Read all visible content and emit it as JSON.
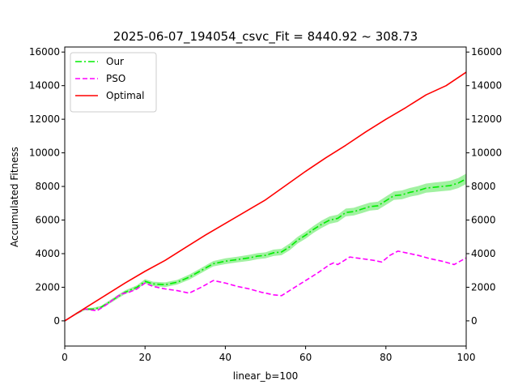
{
  "chart_data": {
    "type": "line",
    "title": "2025-06-07_194054_csvc_Fit = 8440.92 ~ 308.73",
    "xlabel": "linear_b=100",
    "ylabel": "Accumulated Fitness",
    "xlim": [
      0,
      100
    ],
    "ylim": [
      -1500,
      16300
    ],
    "x_ticks": [
      0,
      20,
      40,
      60,
      80,
      100
    ],
    "y_ticks": [
      0,
      2000,
      4000,
      6000,
      8000,
      10000,
      12000,
      14000,
      16000
    ],
    "legend_position": "top-left",
    "grid": false,
    "series": [
      {
        "name": "Our",
        "color": "#00ee00",
        "style": "dashdot",
        "band_color": "#90ee90",
        "points": [
          [
            0,
            0
          ],
          [
            3,
            450
          ],
          [
            5,
            700
          ],
          [
            7,
            700
          ],
          [
            9,
            800
          ],
          [
            12,
            1250
          ],
          [
            15,
            1700
          ],
          [
            18,
            2000
          ],
          [
            20,
            2350
          ],
          [
            22,
            2200
          ],
          [
            25,
            2150
          ],
          [
            28,
            2300
          ],
          [
            31,
            2600
          ],
          [
            34,
            3000
          ],
          [
            37,
            3400
          ],
          [
            40,
            3550
          ],
          [
            43,
            3650
          ],
          [
            46,
            3750
          ],
          [
            48,
            3850
          ],
          [
            50,
            3900
          ],
          [
            52,
            4050
          ],
          [
            54,
            4100
          ],
          [
            56,
            4400
          ],
          [
            58,
            4800
          ],
          [
            60,
            5100
          ],
          [
            62,
            5450
          ],
          [
            64,
            5750
          ],
          [
            66,
            6000
          ],
          [
            68,
            6100
          ],
          [
            70,
            6450
          ],
          [
            72,
            6500
          ],
          [
            74,
            6650
          ],
          [
            76,
            6800
          ],
          [
            78,
            6850
          ],
          [
            80,
            7150
          ],
          [
            82,
            7450
          ],
          [
            84,
            7500
          ],
          [
            86,
            7650
          ],
          [
            88,
            7750
          ],
          [
            90,
            7900
          ],
          [
            92,
            7950
          ],
          [
            94,
            8000
          ],
          [
            96,
            8050
          ],
          [
            98,
            8200
          ],
          [
            100,
            8450
          ]
        ],
        "band_halfwidth": [
          0,
          60,
          70,
          80,
          90,
          100,
          110,
          120,
          130,
          130,
          140,
          140,
          150,
          150,
          160,
          170,
          170,
          180,
          180,
          180,
          190,
          190,
          200,
          200,
          210,
          210,
          220,
          220,
          220,
          230,
          230,
          240,
          240,
          240,
          250,
          250,
          260,
          260,
          270,
          270,
          280,
          280,
          290,
          300,
          310
        ]
      },
      {
        "name": "PSO",
        "color": "#ff00ff",
        "style": "dashed",
        "points": [
          [
            0,
            0
          ],
          [
            3,
            450
          ],
          [
            5,
            700
          ],
          [
            8,
            600
          ],
          [
            10,
            900
          ],
          [
            12,
            1250
          ],
          [
            14,
            1600
          ],
          [
            16,
            1700
          ],
          [
            18,
            1900
          ],
          [
            20,
            2250
          ],
          [
            22,
            2050
          ],
          [
            25,
            1900
          ],
          [
            28,
            1800
          ],
          [
            31,
            1650
          ],
          [
            34,
            2000
          ],
          [
            37,
            2400
          ],
          [
            40,
            2250
          ],
          [
            43,
            2050
          ],
          [
            46,
            1900
          ],
          [
            49,
            1700
          ],
          [
            52,
            1550
          ],
          [
            54,
            1500
          ],
          [
            57,
            1950
          ],
          [
            60,
            2400
          ],
          [
            63,
            2850
          ],
          [
            66,
            3350
          ],
          [
            67,
            3450
          ],
          [
            68,
            3350
          ],
          [
            71,
            3800
          ],
          [
            74,
            3700
          ],
          [
            77,
            3600
          ],
          [
            79,
            3500
          ],
          [
            81,
            3900
          ],
          [
            83,
            4150
          ],
          [
            85,
            4050
          ],
          [
            88,
            3900
          ],
          [
            91,
            3700
          ],
          [
            94,
            3550
          ],
          [
            97,
            3350
          ],
          [
            100,
            3750
          ]
        ]
      },
      {
        "name": "Optimal",
        "color": "#ff0000",
        "style": "solid",
        "points": [
          [
            0,
            0
          ],
          [
            5,
            750
          ],
          [
            10,
            1500
          ],
          [
            15,
            2250
          ],
          [
            20,
            2950
          ],
          [
            25,
            3600
          ],
          [
            30,
            4350
          ],
          [
            35,
            5100
          ],
          [
            40,
            5800
          ],
          [
            45,
            6500
          ],
          [
            50,
            7200
          ],
          [
            55,
            8050
          ],
          [
            60,
            8900
          ],
          [
            65,
            9700
          ],
          [
            70,
            10450
          ],
          [
            75,
            11250
          ],
          [
            80,
            12000
          ],
          [
            85,
            12700
          ],
          [
            90,
            13450
          ],
          [
            95,
            14000
          ],
          [
            100,
            14800
          ]
        ]
      }
    ]
  }
}
